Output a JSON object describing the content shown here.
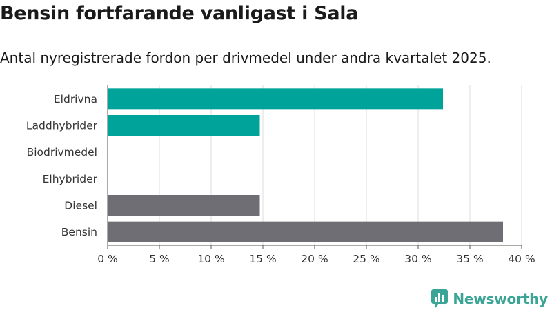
{
  "header": {
    "title": "Bensin fortfarande vanligast i Sala",
    "subtitle": "Antal nyregistrerade fordon per drivmedel under andra kvartalet 2025."
  },
  "brand": {
    "name": "Newsworthy",
    "icon": "newsworthy-logo-icon",
    "color": "#3aa596"
  },
  "chart_data": {
    "type": "bar",
    "orientation": "horizontal",
    "categories": [
      "Eldrivna",
      "Laddhybrider",
      "Biodrivmedel",
      "Elhybrider",
      "Diesel",
      "Bensin"
    ],
    "values": [
      32.4,
      14.7,
      0,
      0,
      14.7,
      38.2
    ],
    "bar_colors": [
      "#00a39a",
      "#00a39a",
      "#00a39a",
      "#00a39a",
      "#6f6e75",
      "#6f6e75"
    ],
    "xlim": [
      0,
      40
    ],
    "xticks": [
      0,
      5,
      10,
      15,
      20,
      25,
      30,
      35,
      40
    ],
    "xtick_labels": [
      "0 %",
      "5 %",
      "10 %",
      "15 %",
      "20 %",
      "25 %",
      "30 %",
      "35 %",
      "40 %"
    ],
    "grid": true,
    "legend": "none"
  }
}
